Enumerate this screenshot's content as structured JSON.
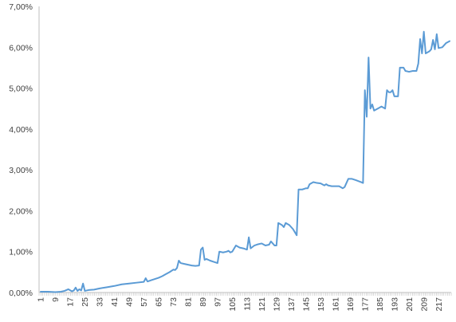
{
  "chart_data": {
    "type": "line",
    "title": "",
    "xlabel": "",
    "ylabel": "",
    "x_range": [
      1,
      223
    ],
    "ylim": [
      0,
      7
    ],
    "y_tick_labels": [
      "0,00%",
      "1,00%",
      "2,00%",
      "3,00%",
      "4,00%",
      "5,00%",
      "6,00%",
      "7,00%"
    ],
    "x_tick_labels": [
      "1",
      "9",
      "17",
      "25",
      "33",
      "41",
      "49",
      "57",
      "65",
      "73",
      "81",
      "89",
      "97",
      "105",
      "113",
      "121",
      "129",
      "137",
      "145",
      "153",
      "161",
      "169",
      "177",
      "185",
      "193",
      "201",
      "209",
      "217"
    ],
    "grid": false,
    "legend": "none",
    "colors": {
      "line": "#5b9bd5",
      "axis": "#bfbfbf",
      "text": "#404040"
    },
    "series": [
      {
        "values": [
          [
            1,
            0.02
          ],
          [
            5,
            0.02
          ],
          [
            9,
            0.01
          ],
          [
            12,
            0.02
          ],
          [
            14,
            0.04
          ],
          [
            16,
            0.08
          ],
          [
            18,
            0.03
          ],
          [
            19,
            0.05
          ],
          [
            20,
            0.12
          ],
          [
            21,
            0.04
          ],
          [
            22,
            0.08
          ],
          [
            23,
            0.05
          ],
          [
            24,
            0.22
          ],
          [
            25,
            0.04
          ],
          [
            27,
            0.06
          ],
          [
            30,
            0.07
          ],
          [
            33,
            0.1
          ],
          [
            37,
            0.13
          ],
          [
            41,
            0.16
          ],
          [
            45,
            0.2
          ],
          [
            49,
            0.22
          ],
          [
            53,
            0.24
          ],
          [
            57,
            0.26
          ],
          [
            58,
            0.35
          ],
          [
            59,
            0.27
          ],
          [
            61,
            0.3
          ],
          [
            63,
            0.33
          ],
          [
            65,
            0.36
          ],
          [
            67,
            0.4
          ],
          [
            69,
            0.45
          ],
          [
            71,
            0.5
          ],
          [
            73,
            0.56
          ],
          [
            74,
            0.55
          ],
          [
            75,
            0.6
          ],
          [
            76,
            0.78
          ],
          [
            77,
            0.72
          ],
          [
            79,
            0.7
          ],
          [
            81,
            0.68
          ],
          [
            83,
            0.66
          ],
          [
            85,
            0.65
          ],
          [
            87,
            0.66
          ],
          [
            88,
            1.05
          ],
          [
            89,
            1.1
          ],
          [
            90,
            0.8
          ],
          [
            91,
            0.82
          ],
          [
            93,
            0.78
          ],
          [
            95,
            0.75
          ],
          [
            97,
            0.72
          ],
          [
            98,
            1.0
          ],
          [
            100,
            0.98
          ],
          [
            102,
            1.0
          ],
          [
            103,
            1.02
          ],
          [
            104,
            0.98
          ],
          [
            105,
            1.0
          ],
          [
            107,
            1.15
          ],
          [
            109,
            1.1
          ],
          [
            111,
            1.08
          ],
          [
            113,
            1.05
          ],
          [
            114,
            1.35
          ],
          [
            115,
            1.08
          ],
          [
            117,
            1.15
          ],
          [
            119,
            1.18
          ],
          [
            121,
            1.2
          ],
          [
            123,
            1.15
          ],
          [
            125,
            1.17
          ],
          [
            126,
            1.25
          ],
          [
            128,
            1.15
          ],
          [
            129,
            1.15
          ],
          [
            130,
            1.7
          ],
          [
            132,
            1.65
          ],
          [
            133,
            1.6
          ],
          [
            134,
            1.7
          ],
          [
            136,
            1.65
          ],
          [
            138,
            1.55
          ],
          [
            140,
            1.4
          ],
          [
            141,
            2.52
          ],
          [
            143,
            2.52
          ],
          [
            145,
            2.55
          ],
          [
            146,
            2.55
          ],
          [
            147,
            2.65
          ],
          [
            149,
            2.7
          ],
          [
            151,
            2.68
          ],
          [
            153,
            2.67
          ],
          [
            155,
            2.62
          ],
          [
            156,
            2.65
          ],
          [
            157,
            2.62
          ],
          [
            159,
            2.6
          ],
          [
            161,
            2.6
          ],
          [
            163,
            2.6
          ],
          [
            165,
            2.55
          ],
          [
            166,
            2.58
          ],
          [
            168,
            2.78
          ],
          [
            170,
            2.78
          ],
          [
            172,
            2.75
          ],
          [
            175,
            2.7
          ],
          [
            176,
            2.68
          ],
          [
            177,
            4.95
          ],
          [
            178,
            4.3
          ],
          [
            179,
            5.75
          ],
          [
            180,
            4.5
          ],
          [
            181,
            4.6
          ],
          [
            182,
            4.45
          ],
          [
            184,
            4.5
          ],
          [
            186,
            4.55
          ],
          [
            188,
            4.5
          ],
          [
            189,
            4.95
          ],
          [
            190,
            4.9
          ],
          [
            191,
            4.9
          ],
          [
            192,
            4.95
          ],
          [
            193,
            4.8
          ],
          [
            195,
            4.8
          ],
          [
            196,
            5.5
          ],
          [
            198,
            5.5
          ],
          [
            199,
            5.42
          ],
          [
            201,
            5.4
          ],
          [
            203,
            5.42
          ],
          [
            205,
            5.42
          ],
          [
            206,
            5.6
          ],
          [
            207,
            6.2
          ],
          [
            208,
            5.85
          ],
          [
            209,
            6.38
          ],
          [
            210,
            5.85
          ],
          [
            212,
            5.9
          ],
          [
            213,
            5.95
          ],
          [
            214,
            6.18
          ],
          [
            215,
            5.95
          ],
          [
            216,
            6.32
          ],
          [
            217,
            5.98
          ],
          [
            219,
            6.0
          ],
          [
            221,
            6.1
          ],
          [
            223,
            6.15
          ]
        ]
      }
    ]
  }
}
